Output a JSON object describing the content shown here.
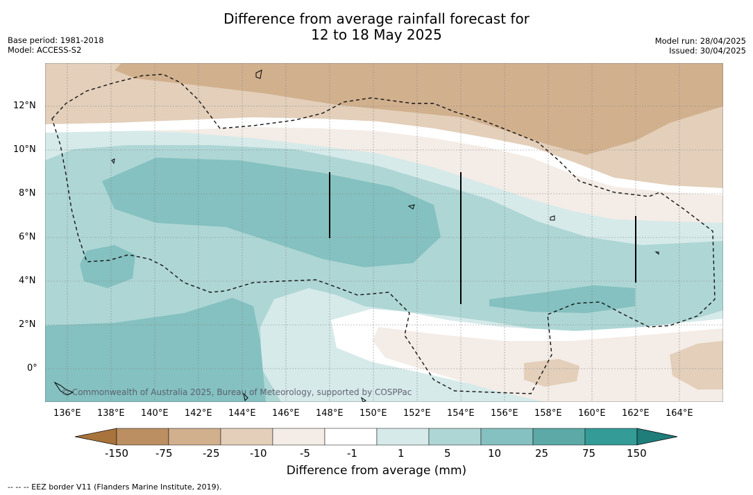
{
  "title": {
    "line1": "Difference from average rainfall forecast for",
    "line2": "12 to 18 May 2025"
  },
  "meta": {
    "base_period": "Base period: 1981-2018",
    "model": "Model: ACCESS-S2",
    "model_run": "Model run: 28/04/2025",
    "issued": "Issued: 30/04/2025"
  },
  "map": {
    "lon_labels": [
      "136°E",
      "138°E",
      "140°E",
      "142°E",
      "144°E",
      "146°E",
      "148°E",
      "150°E",
      "152°E",
      "154°E",
      "156°E",
      "158°E",
      "160°E",
      "162°E",
      "164°E"
    ],
    "lat_labels": [
      "12°N",
      "10°N",
      "8°N",
      "6°N",
      "4°N",
      "2°N",
      "0°"
    ],
    "copyright": "© Commonwealth of Australia 2025, Bureau of Meteorology, supported by COSPPac"
  },
  "colorbar": {
    "ticks": [
      "-150",
      "-75",
      "-25",
      "-10",
      "-5",
      "-1",
      "1",
      "5",
      "10",
      "25",
      "75",
      "150"
    ],
    "colors": [
      "#a8733c",
      "#bb8f62",
      "#d1b08e",
      "#e3cfba",
      "#f4ece6",
      "#ffffff",
      "#d6eaea",
      "#aed6d5",
      "#84c1c0",
      "#5ca9a7",
      "#349b97",
      "#1f7d7a"
    ],
    "label": "Difference from average (mm)"
  },
  "footer": {
    "eez_note": "--  --  -- EEZ border V11 (Flanders Marine Institute, 2019)."
  }
}
